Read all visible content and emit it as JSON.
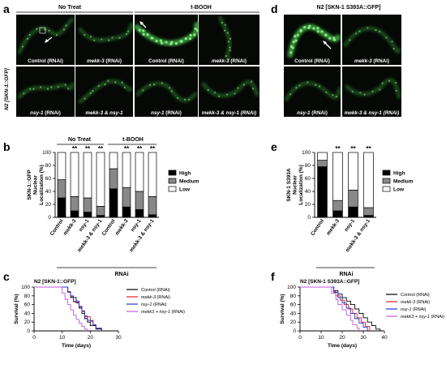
{
  "panels": {
    "a": {
      "letter": "a",
      "strain": "N2 [SKN-1::GFP]",
      "groups": [
        "No Treat",
        "t-BOOH"
      ],
      "images": [
        {
          "label": "Control (RNAi)",
          "gene": ""
        },
        {
          "label": " (RNAi)",
          "gene": "mekk-3"
        },
        {
          "label": "Control (RNAi)",
          "gene": ""
        },
        {
          "label": " (RNAi)",
          "gene": "mekk-3"
        },
        {
          "label": " (RNAi)",
          "gene": "nsy-1"
        },
        {
          "label": "mekk-3 & nsy-1",
          "gene": ""
        },
        {
          "label": " (RNAi)",
          "gene": "nsy-1"
        },
        {
          "label": "mekk-3 & nsy-1 (RNAi)",
          "gene": ""
        }
      ]
    },
    "b": {
      "letter": "b",
      "groups": [
        "No Treat",
        "t-BOOH"
      ],
      "ylabel": "SKN-1::GFP Nuclear Localization (%)",
      "xgroup": "RNAi",
      "sig": "**"
    },
    "c": {
      "letter": "c",
      "title": "N2 [SKN-1::GFP]",
      "ylabel": "Survival (%)",
      "xlabel": "Time (days)"
    },
    "d": {
      "letter": "d",
      "strain": "N2 [SKN-1 S393A::GFP]",
      "images": [
        {
          "label": "Control (RNAi)",
          "gene": ""
        },
        {
          "label": " (RNAi)",
          "gene": "mekk-3"
        },
        {
          "label": " (RNAi)",
          "gene": "nsy-1"
        },
        {
          "label": "mekk-3 & nsy-1 (RNAi)",
          "gene": ""
        }
      ]
    },
    "e": {
      "letter": "e",
      "ylabel": "SKN-1 S393A Nuclear Localization (%)",
      "xgroup": "RNAi",
      "sig": "**"
    },
    "f": {
      "letter": "f",
      "title": "N2 [SKN-1 S393A::GFP]",
      "ylabel": "Survival (%)",
      "xlabel": "Time (days)"
    }
  },
  "legend_levels": [
    "High",
    "Medium",
    "Low"
  ],
  "colors": {
    "high": "#000000",
    "medium": "#888888",
    "low": "#ffffff",
    "control": "#000000",
    "mekk3": "#e8191f",
    "nsy1": "#1f35d8",
    "double": "#c05ad8",
    "gfp": "#49c24b"
  },
  "chart_data": [
    {
      "type": "bar",
      "panel": "b",
      "stacked": true,
      "categories": [
        "Control",
        "mekk-3",
        "nsy-1",
        "mekk-3 & nsy-1",
        "Control",
        "mekk-3",
        "nsy-1",
        "mekk-3 & nsy-1"
      ],
      "series": [
        {
          "name": "High",
          "values": [
            30,
            10,
            8,
            3,
            44,
            16,
            12,
            4
          ]
        },
        {
          "name": "Medium",
          "values": [
            28,
            22,
            22,
            14,
            31,
            30,
            28,
            28
          ]
        },
        {
          "name": "Low",
          "values": [
            42,
            68,
            70,
            83,
            25,
            54,
            60,
            68
          ]
        }
      ],
      "ylim": [
        0,
        100
      ],
      "yticks": [
        0,
        20,
        40,
        60,
        80,
        100
      ],
      "ylabel": "SKN-1::GFP Nuclear Localization (%)",
      "significance": [
        "",
        "**",
        "**",
        "**",
        "",
        "**",
        "**",
        "**"
      ]
    },
    {
      "type": "line",
      "panel": "c",
      "xlim": [
        0,
        30
      ],
      "ylim": [
        0,
        100
      ],
      "xticks": [
        0,
        10,
        20,
        30
      ],
      "yticks": [
        0,
        20,
        40,
        60,
        80,
        100
      ],
      "series": [
        {
          "name": "Control (RNAi)",
          "x": [
            0,
            11,
            12,
            13,
            15,
            16,
            17,
            18,
            19,
            20,
            22,
            24
          ],
          "y": [
            100,
            100,
            88,
            76,
            64,
            52,
            40,
            28,
            20,
            12,
            4,
            0
          ]
        },
        {
          "name": "mekk-3 (RNAi)",
          "x": [
            0,
            11,
            12,
            13,
            14,
            16,
            17,
            18,
            20,
            21,
            22,
            24
          ],
          "y": [
            100,
            100,
            88,
            78,
            66,
            54,
            44,
            32,
            22,
            14,
            6,
            0
          ]
        },
        {
          "name": "nsy-1 (RNAi)",
          "x": [
            0,
            11,
            12,
            13,
            14,
            16,
            17,
            18,
            19,
            21,
            22,
            24
          ],
          "y": [
            100,
            100,
            90,
            80,
            68,
            56,
            46,
            34,
            24,
            14,
            6,
            0
          ]
        },
        {
          "name": "mekk3 + nsy-1 (RNAi)",
          "x": [
            0,
            9,
            10,
            11,
            12,
            13,
            14,
            15,
            16,
            17,
            18,
            19
          ],
          "y": [
            100,
            100,
            86,
            72,
            60,
            48,
            36,
            26,
            18,
            10,
            4,
            0
          ]
        }
      ],
      "xlabel": "Time (days)",
      "ylabel": "Survival (%)"
    },
    {
      "type": "bar",
      "panel": "e",
      "stacked": true,
      "categories": [
        "Control",
        "mekk-3",
        "nsy-1",
        "mekk-3 & nsy-1"
      ],
      "series": [
        {
          "name": "High",
          "values": [
            78,
            10,
            16,
            3
          ]
        },
        {
          "name": "Medium",
          "values": [
            10,
            16,
            26,
            12
          ]
        },
        {
          "name": "Low",
          "values": [
            12,
            74,
            58,
            85
          ]
        }
      ],
      "ylim": [
        0,
        100
      ],
      "yticks": [
        0,
        20,
        40,
        60,
        80,
        100
      ],
      "ylabel": "SKN-1 S393A Nuclear Localization (%)",
      "significance": [
        "",
        "**",
        "**",
        "**"
      ]
    },
    {
      "type": "line",
      "panel": "f",
      "xlim": [
        0,
        40
      ],
      "ylim": [
        0,
        100
      ],
      "xticks": [
        0,
        10,
        20,
        30,
        40
      ],
      "yticks": [
        0,
        20,
        40,
        60,
        80,
        100
      ],
      "series": [
        {
          "name": "Control (RNAi)",
          "x": [
            0,
            14,
            16,
            18,
            20,
            22,
            24,
            26,
            28,
            30,
            32,
            34,
            36,
            38
          ],
          "y": [
            100,
            100,
            92,
            84,
            76,
            68,
            60,
            50,
            40,
            30,
            20,
            12,
            4,
            0
          ]
        },
        {
          "name": "mekk-3 (RNAi)",
          "x": [
            0,
            14,
            16,
            17,
            19,
            21,
            23,
            25,
            27,
            29,
            31,
            33
          ],
          "y": [
            100,
            100,
            90,
            80,
            70,
            60,
            50,
            40,
            30,
            20,
            10,
            0
          ]
        },
        {
          "name": "nsy-1 (RNAi)",
          "x": [
            0,
            14,
            16,
            18,
            20,
            22,
            24,
            26,
            28,
            30,
            32
          ],
          "y": [
            100,
            100,
            88,
            76,
            64,
            52,
            40,
            28,
            18,
            8,
            0
          ]
        },
        {
          "name": "mekk3 + nsy-1 (RNAi)",
          "x": [
            0,
            14,
            15,
            17,
            18,
            20,
            22,
            24,
            25,
            27,
            28
          ],
          "y": [
            100,
            100,
            86,
            72,
            60,
            48,
            36,
            24,
            14,
            6,
            0
          ]
        }
      ],
      "xlabel": "Time (days)",
      "ylabel": "Survival (%)"
    }
  ]
}
